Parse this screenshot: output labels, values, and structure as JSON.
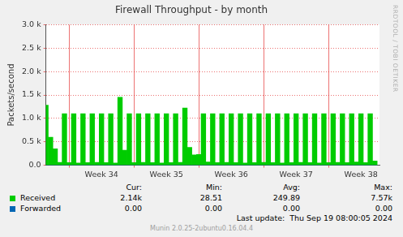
{
  "chart_data": {
    "type": "bar",
    "title": "Firewall Throughput - by month",
    "y_label": "Packets/second",
    "side_text": "RRDTOOL / TOBI OETIKER",
    "x": [
      0,
      0.5,
      1,
      1.5,
      2,
      2.5,
      3,
      3.5,
      4,
      4.5,
      5,
      5.5,
      6,
      6.5,
      7,
      7.5,
      8,
      8.5,
      9,
      9.5,
      10,
      10.5,
      11,
      11.5,
      12,
      12.5,
      13,
      13.5,
      14,
      14.5,
      15,
      15.5,
      16,
      16.5,
      17,
      17.5,
      18,
      18.5,
      19,
      19.5,
      20,
      20.5,
      21,
      21.5,
      22,
      22.5,
      23,
      23.5,
      24,
      24.5,
      25,
      25.5,
      26,
      26.5,
      27,
      27.5,
      28,
      28.5,
      29,
      29.5,
      30,
      30.5,
      31,
      31.5,
      32,
      32.5,
      33,
      33.5,
      34,
      34.5,
      35,
      35.5
    ],
    "series": [
      {
        "name": "Received",
        "color": "#00cc00",
        "values": [
          1280,
          600,
          350,
          60,
          1100,
          55,
          1100,
          50,
          1100,
          55,
          1100,
          60,
          1100,
          55,
          1100,
          50,
          1450,
          320,
          1100,
          55,
          1100,
          60,
          1100,
          55,
          1100,
          50,
          1100,
          55,
          1100,
          60,
          1220,
          380,
          220,
          230,
          1100,
          70,
          1100,
          55,
          1100,
          60,
          1100,
          55,
          1100,
          50,
          1100,
          55,
          1100,
          60,
          1100,
          55,
          1100,
          50,
          1100,
          55,
          1100,
          60,
          1100,
          55,
          1100,
          50,
          1100,
          55,
          1100,
          60,
          1100,
          55,
          1100,
          70,
          1100,
          55,
          1100,
          90
        ]
      },
      {
        "name": "Forwarded",
        "color": "#0066b3",
        "values": [
          0,
          0,
          0,
          0,
          0,
          0,
          0,
          0,
          0,
          0,
          0,
          0,
          0,
          0,
          0,
          0,
          0,
          0,
          0,
          0,
          0,
          0,
          0,
          0,
          0,
          0,
          0,
          0,
          0,
          0,
          0,
          0,
          0,
          0,
          0,
          0,
          0,
          0,
          0,
          0,
          0,
          0,
          0,
          0,
          0,
          0,
          0,
          0,
          0,
          0,
          0,
          0,
          0,
          0,
          0,
          0,
          0,
          0,
          0,
          0,
          0,
          0,
          0,
          0,
          0,
          0,
          0,
          0,
          0,
          0,
          0,
          0
        ]
      }
    ],
    "xlim": [
      0,
      36
    ],
    "xticks": [
      {
        "value": 6,
        "label": "Week 34"
      },
      {
        "value": 13,
        "label": "Week 35"
      },
      {
        "value": 20,
        "label": "Week 36"
      },
      {
        "value": 27,
        "label": "Week 37"
      },
      {
        "value": 34,
        "label": "Week 38"
      }
    ],
    "ylim": [
      0,
      3000
    ],
    "yticks": [
      {
        "value": 0,
        "label": "0.0"
      },
      {
        "value": 500,
        "label": "0.5 k"
      },
      {
        "value": 1000,
        "label": "1.0 k"
      },
      {
        "value": 1500,
        "label": "1.5 k"
      },
      {
        "value": 2000,
        "label": "2.0 k"
      },
      {
        "value": 2500,
        "label": "2.5 k"
      },
      {
        "value": 3000,
        "label": "3.0 k"
      }
    ],
    "grid": true,
    "legend_table": {
      "columns": [
        "Cur:",
        "Min:",
        "Avg:",
        "Max:"
      ],
      "rows": [
        {
          "name": "Received",
          "values": [
            "2.14k",
            "28.51",
            "249.89",
            "7.57k"
          ]
        },
        {
          "name": "Forwarded",
          "values": [
            "0.00",
            "0.00",
            "0.00",
            "0.00"
          ]
        }
      ]
    },
    "last_update": "Last update:  Thu Sep 19 08:00:05 2024",
    "footer": "Munin 2.0.25-2ubuntu0.16.04.4"
  }
}
